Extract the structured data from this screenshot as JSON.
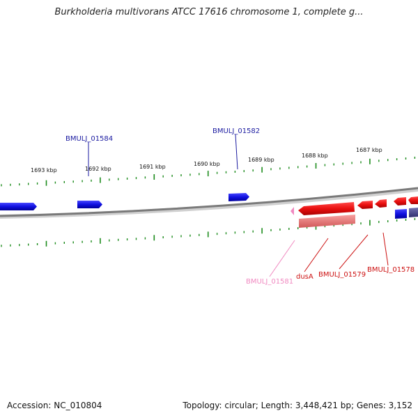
{
  "title": "Burkholderia multivorans ATCC 17616 chromosome 1, complete g...",
  "footer": {
    "accession": "Accession: NC_010804",
    "summary": "Topology: circular; Length: 3,448,421 bp; Genes: 3,152"
  },
  "colors": {
    "forward": "#1010e0",
    "reverse": "#e81010",
    "pseudo": "#f088c0",
    "rna": "#f07878",
    "tick": "#1a8a1a",
    "backbone": "#808080"
  },
  "ruler_labels": [
    "1693 kbp",
    "1692 kbp",
    "1691 kbp",
    "1690 kbp",
    "1689 kbp",
    "1688 kbp",
    "1687 kbp"
  ],
  "gene_labels": {
    "top": [
      "BMULJ_01584",
      "BMULJ_01582"
    ],
    "bottom": [
      "BMULJ_01581",
      "dusA",
      "BMULJ_01579",
      "BMULJ_01578"
    ]
  }
}
